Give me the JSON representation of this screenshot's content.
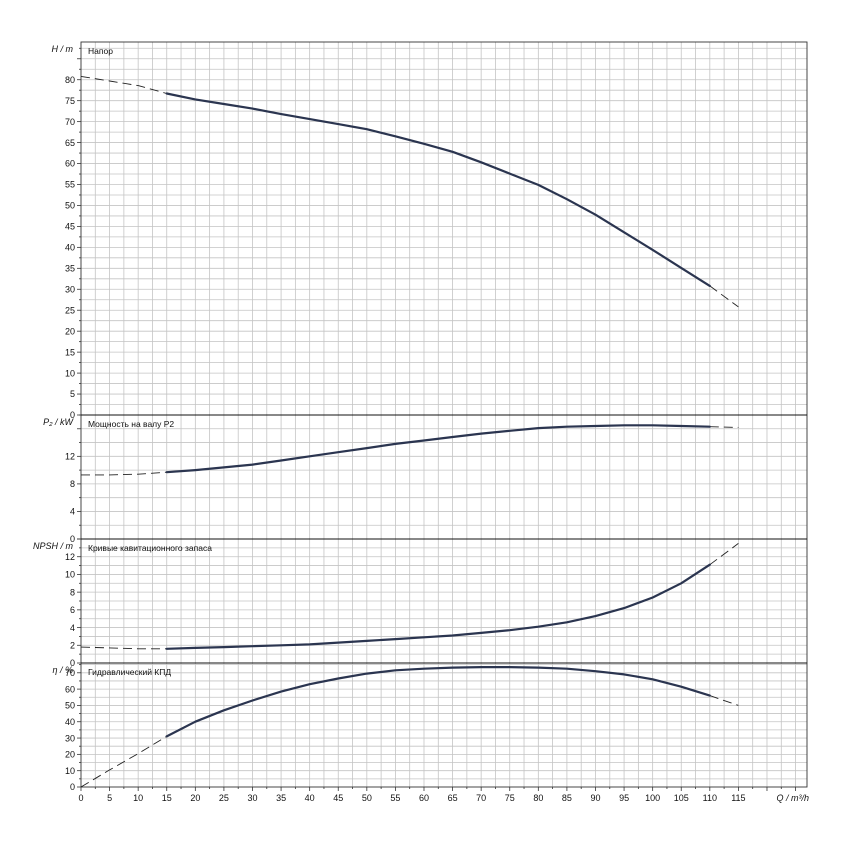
{
  "chart_data": [
    {
      "type": "line",
      "title": "Напор",
      "ylabel": "H / m",
      "xlim": [
        0,
        127
      ],
      "ylim": [
        0,
        89
      ],
      "y_ticks": [
        0,
        5,
        10,
        15,
        20,
        25,
        30,
        35,
        40,
        45,
        50,
        55,
        60,
        65,
        70,
        75,
        80
      ],
      "grid": true,
      "solid": {
        "x": [
          15,
          20,
          25,
          30,
          35,
          40,
          45,
          50,
          55,
          60,
          65,
          70,
          75,
          80,
          85,
          90,
          95,
          100,
          105,
          110
        ],
        "y": [
          76.7,
          75.3,
          74.2,
          73.1,
          71.8,
          70.6,
          69.4,
          68.2,
          66.5,
          64.7,
          62.8,
          60.3,
          57.6,
          54.9,
          51.5,
          47.8,
          43.6,
          39.4,
          35.1,
          30.8
        ]
      },
      "dashed": [
        {
          "x": [
            0,
            5,
            10,
            15
          ],
          "y": [
            80.8,
            79.7,
            78.6,
            76.7
          ]
        },
        {
          "x": [
            110,
            115
          ],
          "y": [
            30.8,
            25.8
          ]
        }
      ]
    },
    {
      "type": "line",
      "title": "Мощность на валу P2",
      "ylabel": "P₂ / kW",
      "xlim": [
        0,
        127
      ],
      "ylim": [
        0,
        18
      ],
      "y_ticks": [
        0,
        4,
        8,
        12
      ],
      "grid": true,
      "solid": {
        "x": [
          15,
          20,
          25,
          30,
          35,
          40,
          45,
          50,
          55,
          60,
          65,
          70,
          75,
          80,
          85,
          90,
          95,
          100,
          105,
          110
        ],
        "y": [
          9.7,
          10.0,
          10.4,
          10.8,
          11.4,
          12.0,
          12.6,
          13.2,
          13.8,
          14.3,
          14.8,
          15.3,
          15.7,
          16.1,
          16.3,
          16.4,
          16.5,
          16.5,
          16.4,
          16.3
        ]
      },
      "dashed": [
        {
          "x": [
            0,
            5,
            10,
            15
          ],
          "y": [
            9.3,
            9.3,
            9.4,
            9.7
          ]
        },
        {
          "x": [
            110,
            115
          ],
          "y": [
            16.3,
            16.2
          ]
        }
      ]
    },
    {
      "type": "line",
      "title": "Кривые кавитационного запаса",
      "ylabel": "NPSH / m",
      "xlim": [
        0,
        127
      ],
      "ylim": [
        0,
        14
      ],
      "y_ticks": [
        0,
        2,
        4,
        6,
        8,
        10,
        12
      ],
      "grid": true,
      "solid": {
        "x": [
          15,
          20,
          25,
          30,
          35,
          40,
          45,
          50,
          55,
          60,
          65,
          70,
          75,
          80,
          85,
          90,
          95,
          100,
          105,
          110
        ],
        "y": [
          1.6,
          1.7,
          1.8,
          1.9,
          2.0,
          2.1,
          2.3,
          2.5,
          2.7,
          2.9,
          3.1,
          3.4,
          3.7,
          4.1,
          4.6,
          5.3,
          6.2,
          7.4,
          9.0,
          11.1
        ]
      },
      "dashed": [
        {
          "x": [
            0,
            5,
            10,
            15
          ],
          "y": [
            1.8,
            1.7,
            1.6,
            1.6
          ]
        },
        {
          "x": [
            110,
            115
          ],
          "y": [
            11.1,
            13.5
          ]
        }
      ]
    },
    {
      "type": "line",
      "title": "Гидравлический КПД",
      "ylabel": "η / %",
      "xlabel": "Q / m³/h",
      "xlim": [
        0,
        127
      ],
      "ylim": [
        0,
        76
      ],
      "x_ticks": [
        0,
        5,
        10,
        15,
        20,
        25,
        30,
        35,
        40,
        45,
        50,
        55,
        60,
        65,
        70,
        75,
        80,
        85,
        90,
        95,
        100,
        105,
        110,
        115
      ],
      "y_ticks": [
        0,
        10,
        20,
        30,
        40,
        50,
        60,
        70
      ],
      "grid": true,
      "solid": {
        "x": [
          15,
          20,
          25,
          30,
          35,
          40,
          45,
          50,
          55,
          60,
          65,
          70,
          75,
          80,
          85,
          90,
          95,
          100,
          105,
          110
        ],
        "y": [
          31,
          40,
          47,
          53,
          58.5,
          63,
          66.5,
          69.5,
          71.5,
          72.5,
          73.2,
          73.5,
          73.5,
          73.2,
          72.5,
          71,
          69,
          66,
          61.5,
          56
        ]
      },
      "dashed": [
        {
          "x": [
            0,
            5,
            10,
            15
          ],
          "y": [
            0,
            10.5,
            20.5,
            31
          ]
        },
        {
          "x": [
            110,
            115
          ],
          "y": [
            56,
            50
          ]
        }
      ]
    }
  ]
}
